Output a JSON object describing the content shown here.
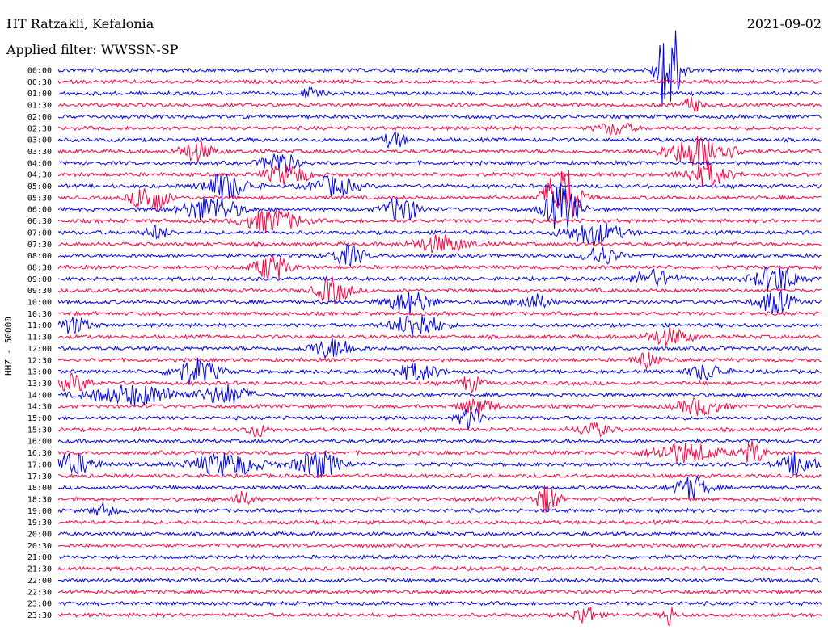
{
  "header": {
    "station": "HT Ratzakli, Kefalonia",
    "filter": "Applied filter: WWSSN-SP",
    "date": "2021-09-02"
  },
  "side_label": "HHZ - 50000",
  "colors": {
    "odd": "#0000ee",
    "even": "#ff0040",
    "background": "#ffffff"
  },
  "chart_data": {
    "type": "line",
    "title": "HT Ratzakli, Kefalonia",
    "subtitle": "Applied filter: WWSSN-SP",
    "ylabel": "HHZ - 50000",
    "rows": [
      "00:00",
      "00:30",
      "01:00",
      "01:30",
      "02:00",
      "02:30",
      "03:00",
      "03:30",
      "04:00",
      "04:30",
      "05:00",
      "05:30",
      "06:00",
      "06:30",
      "07:00",
      "07:30",
      "08:00",
      "08:30",
      "09:00",
      "09:30",
      "10:00",
      "10:30",
      "11:00",
      "11:30",
      "12:00",
      "12:30",
      "13:00",
      "13:30",
      "14:00",
      "14:30",
      "15:00",
      "15:30",
      "16:00",
      "16:30",
      "17:00",
      "17:30",
      "18:00",
      "18:30",
      "19:00",
      "19:30",
      "20:00",
      "20:30",
      "21:00",
      "21:30",
      "22:00",
      "22:30",
      "23:00",
      "23:30"
    ],
    "events": [
      {
        "row": 0,
        "x": 0.8,
        "amp": 70,
        "w": 0.02
      },
      {
        "row": 2,
        "x": 0.33,
        "amp": 6,
        "w": 0.02
      },
      {
        "row": 3,
        "x": 0.83,
        "amp": 10,
        "w": 0.015
      },
      {
        "row": 5,
        "x": 0.73,
        "amp": 8,
        "w": 0.03
      },
      {
        "row": 6,
        "x": 0.44,
        "amp": 10,
        "w": 0.02
      },
      {
        "row": 7,
        "x": 0.18,
        "amp": 12,
        "w": 0.03
      },
      {
        "row": 7,
        "x": 0.84,
        "amp": 18,
        "w": 0.06
      },
      {
        "row": 8,
        "x": 0.29,
        "amp": 14,
        "w": 0.03
      },
      {
        "row": 9,
        "x": 0.3,
        "amp": 12,
        "w": 0.04
      },
      {
        "row": 9,
        "x": 0.85,
        "amp": 14,
        "w": 0.04
      },
      {
        "row": 10,
        "x": 0.22,
        "amp": 16,
        "w": 0.04
      },
      {
        "row": 10,
        "x": 0.36,
        "amp": 12,
        "w": 0.04
      },
      {
        "row": 11,
        "x": 0.12,
        "amp": 20,
        "w": 0.03
      },
      {
        "row": 11,
        "x": 0.66,
        "amp": 40,
        "w": 0.03
      },
      {
        "row": 12,
        "x": 0.2,
        "amp": 16,
        "w": 0.05
      },
      {
        "row": 12,
        "x": 0.45,
        "amp": 16,
        "w": 0.03
      },
      {
        "row": 12,
        "x": 0.66,
        "amp": 30,
        "w": 0.03
      },
      {
        "row": 13,
        "x": 0.28,
        "amp": 14,
        "w": 0.05
      },
      {
        "row": 14,
        "x": 0.13,
        "amp": 8,
        "w": 0.02
      },
      {
        "row": 14,
        "x": 0.7,
        "amp": 14,
        "w": 0.05
      },
      {
        "row": 15,
        "x": 0.5,
        "amp": 10,
        "w": 0.05
      },
      {
        "row": 16,
        "x": 0.38,
        "amp": 12,
        "w": 0.03
      },
      {
        "row": 16,
        "x": 0.71,
        "amp": 12,
        "w": 0.03
      },
      {
        "row": 17,
        "x": 0.28,
        "amp": 16,
        "w": 0.03
      },
      {
        "row": 18,
        "x": 0.78,
        "amp": 10,
        "w": 0.04
      },
      {
        "row": 18,
        "x": 0.94,
        "amp": 16,
        "w": 0.04
      },
      {
        "row": 19,
        "x": 0.36,
        "amp": 16,
        "w": 0.03
      },
      {
        "row": 20,
        "x": 0.46,
        "amp": 14,
        "w": 0.04
      },
      {
        "row": 20,
        "x": 0.62,
        "amp": 10,
        "w": 0.03
      },
      {
        "row": 20,
        "x": 0.94,
        "amp": 14,
        "w": 0.03
      },
      {
        "row": 22,
        "x": 0.47,
        "amp": 16,
        "w": 0.04
      },
      {
        "row": 22,
        "x": 0.02,
        "amp": 10,
        "w": 0.03
      },
      {
        "row": 23,
        "x": 0.8,
        "amp": 10,
        "w": 0.04
      },
      {
        "row": 24,
        "x": 0.36,
        "amp": 12,
        "w": 0.04
      },
      {
        "row": 25,
        "x": 0.77,
        "amp": 10,
        "w": 0.02
      },
      {
        "row": 26,
        "x": 0.18,
        "amp": 16,
        "w": 0.04
      },
      {
        "row": 26,
        "x": 0.47,
        "amp": 10,
        "w": 0.04
      },
      {
        "row": 26,
        "x": 0.85,
        "amp": 10,
        "w": 0.03
      },
      {
        "row": 27,
        "x": 0.02,
        "amp": 10,
        "w": 0.03
      },
      {
        "row": 27,
        "x": 0.54,
        "amp": 10,
        "w": 0.02
      },
      {
        "row": 28,
        "x": 0.1,
        "amp": 12,
        "w": 0.08
      },
      {
        "row": 28,
        "x": 0.22,
        "amp": 12,
        "w": 0.04
      },
      {
        "row": 29,
        "x": 0.55,
        "amp": 10,
        "w": 0.03
      },
      {
        "row": 29,
        "x": 0.84,
        "amp": 10,
        "w": 0.04
      },
      {
        "row": 30,
        "x": 0.54,
        "amp": 14,
        "w": 0.02
      },
      {
        "row": 31,
        "x": 0.26,
        "amp": 8,
        "w": 0.02
      },
      {
        "row": 31,
        "x": 0.7,
        "amp": 8,
        "w": 0.03
      },
      {
        "row": 33,
        "x": 0.82,
        "amp": 12,
        "w": 0.06
      },
      {
        "row": 33,
        "x": 0.91,
        "amp": 14,
        "w": 0.02
      },
      {
        "row": 34,
        "x": 0.02,
        "amp": 12,
        "w": 0.04
      },
      {
        "row": 34,
        "x": 0.22,
        "amp": 14,
        "w": 0.06
      },
      {
        "row": 34,
        "x": 0.34,
        "amp": 16,
        "w": 0.04
      },
      {
        "row": 34,
        "x": 0.97,
        "amp": 14,
        "w": 0.03
      },
      {
        "row": 36,
        "x": 0.83,
        "amp": 14,
        "w": 0.03
      },
      {
        "row": 37,
        "x": 0.24,
        "amp": 8,
        "w": 0.02
      },
      {
        "row": 37,
        "x": 0.64,
        "amp": 18,
        "w": 0.02
      },
      {
        "row": 38,
        "x": 0.06,
        "amp": 8,
        "w": 0.02
      },
      {
        "row": 47,
        "x": 0.69,
        "amp": 12,
        "w": 0.02
      },
      {
        "row": 47,
        "x": 0.8,
        "amp": 14,
        "w": 0.01
      }
    ]
  }
}
